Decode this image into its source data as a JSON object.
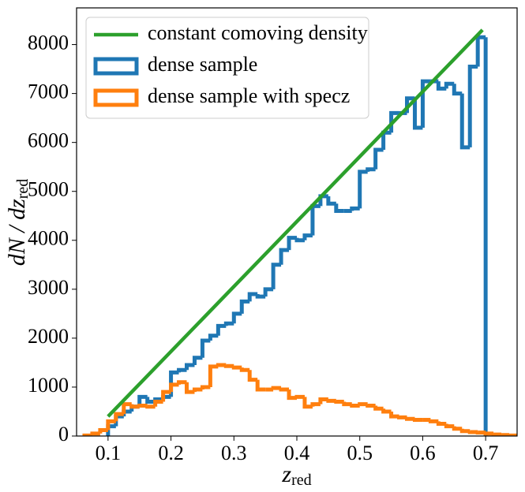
{
  "chart_data": {
    "type": "histogram",
    "xlabel": {
      "main": "z",
      "sub": "red"
    },
    "ylabel": {
      "main": "dN / dz",
      "sub": "red"
    },
    "xlim": [
      0.05,
      0.75
    ],
    "ylim": [
      0,
      8750
    ],
    "xticks": [
      0.1,
      0.2,
      0.3,
      0.4,
      0.5,
      0.6,
      0.7
    ],
    "yticks": [
      0,
      1000,
      2000,
      3000,
      4000,
      5000,
      6000,
      7000,
      8000
    ],
    "legend": "upper left",
    "line": {
      "name": "constant comoving density",
      "color": "#2ca02c",
      "x": [
        0.1,
        0.695
      ],
      "values": [
        400,
        8300
      ]
    },
    "series": [
      {
        "name": "dense sample",
        "color": "#1f77b4",
        "bins": [
          0.1,
          0.1125,
          0.125,
          0.1375,
          0.15,
          0.1625,
          0.175,
          0.1875,
          0.2,
          0.2125,
          0.225,
          0.2375,
          0.25,
          0.2625,
          0.275,
          0.2875,
          0.3,
          0.3125,
          0.325,
          0.3375,
          0.35,
          0.3625,
          0.375,
          0.3875,
          0.4,
          0.4125,
          0.425,
          0.4375,
          0.45,
          0.4625,
          0.475,
          0.4875,
          0.5,
          0.5125,
          0.525,
          0.5375,
          0.55,
          0.5625,
          0.575,
          0.5875,
          0.6,
          0.6125,
          0.625,
          0.6375,
          0.65,
          0.6625,
          0.675,
          0.6875,
          0.7
        ],
        "values": [
          200,
          400,
          500,
          600,
          800,
          700,
          750,
          800,
          1300,
          1350,
          1450,
          1600,
          1950,
          2050,
          2250,
          2300,
          2500,
          2750,
          2900,
          2850,
          3000,
          3500,
          3800,
          4050,
          4000,
          4100,
          4700,
          4900,
          4750,
          4600,
          4600,
          4650,
          5400,
          5450,
          5850,
          6200,
          6600,
          6600,
          6900,
          6300,
          7250,
          7250,
          7100,
          7200,
          7000,
          5900,
          7550,
          8150
        ]
      },
      {
        "name": "dense sample with specz",
        "color": "#ff7f0e",
        "bins": [
          0.0625,
          0.075,
          0.0875,
          0.1,
          0.1125,
          0.125,
          0.1375,
          0.15,
          0.1625,
          0.175,
          0.1875,
          0.2,
          0.2125,
          0.225,
          0.2375,
          0.25,
          0.2625,
          0.275,
          0.2875,
          0.3,
          0.3125,
          0.325,
          0.3375,
          0.35,
          0.3625,
          0.375,
          0.3875,
          0.4,
          0.4125,
          0.425,
          0.4375,
          0.45,
          0.4625,
          0.475,
          0.4875,
          0.5,
          0.5125,
          0.525,
          0.5375,
          0.55,
          0.5625,
          0.575,
          0.5875,
          0.6,
          0.6125,
          0.625,
          0.6375,
          0.65,
          0.6625,
          0.675,
          0.6875,
          0.7,
          0.7125,
          0.725,
          0.7375,
          0.75
        ],
        "values": [
          10,
          50,
          120,
          300,
          450,
          650,
          600,
          620,
          600,
          700,
          900,
          1050,
          1100,
          900,
          950,
          1000,
          1420,
          1450,
          1430,
          1400,
          1350,
          1150,
          950,
          950,
          980,
          950,
          780,
          800,
          600,
          650,
          750,
          720,
          700,
          650,
          620,
          650,
          620,
          560,
          500,
          400,
          380,
          350,
          330,
          330,
          300,
          250,
          200,
          150,
          100,
          80,
          70,
          50,
          30,
          20,
          10
        ]
      }
    ]
  }
}
